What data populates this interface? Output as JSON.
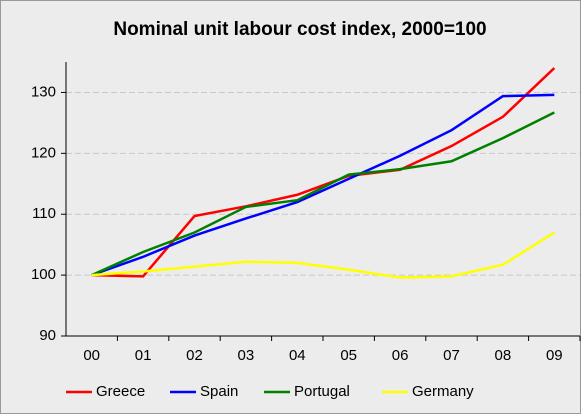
{
  "chart_data": {
    "type": "line",
    "title": "Nominal unit labour cost index, 2000=100",
    "categories": [
      "00",
      "01",
      "02",
      "03",
      "04",
      "05",
      "06",
      "07",
      "08",
      "09"
    ],
    "series": [
      {
        "name": "Greece",
        "color": "#ff0000",
        "values": [
          100,
          99.8,
          109.7,
          111.3,
          113.2,
          116.3,
          117.3,
          121.2,
          126.0,
          134.0
        ]
      },
      {
        "name": "Spain",
        "color": "#0000ff",
        "values": [
          100,
          103.0,
          106.5,
          109.3,
          112.0,
          115.8,
          119.6,
          123.8,
          129.4,
          129.6
        ]
      },
      {
        "name": "Portugal",
        "color": "#008000",
        "values": [
          100,
          103.8,
          107.0,
          111.2,
          112.3,
          116.5,
          117.4,
          118.7,
          122.5,
          126.7
        ]
      },
      {
        "name": "Germany",
        "color": "#ffff00",
        "values": [
          100,
          100.6,
          101.4,
          102.2,
          102.0,
          100.9,
          99.6,
          99.8,
          101.7,
          107.0
        ]
      }
    ],
    "ylim": [
      90,
      135
    ],
    "yticks": [
      90,
      100,
      110,
      120,
      130
    ],
    "grid": true,
    "legend": "bottom"
  }
}
